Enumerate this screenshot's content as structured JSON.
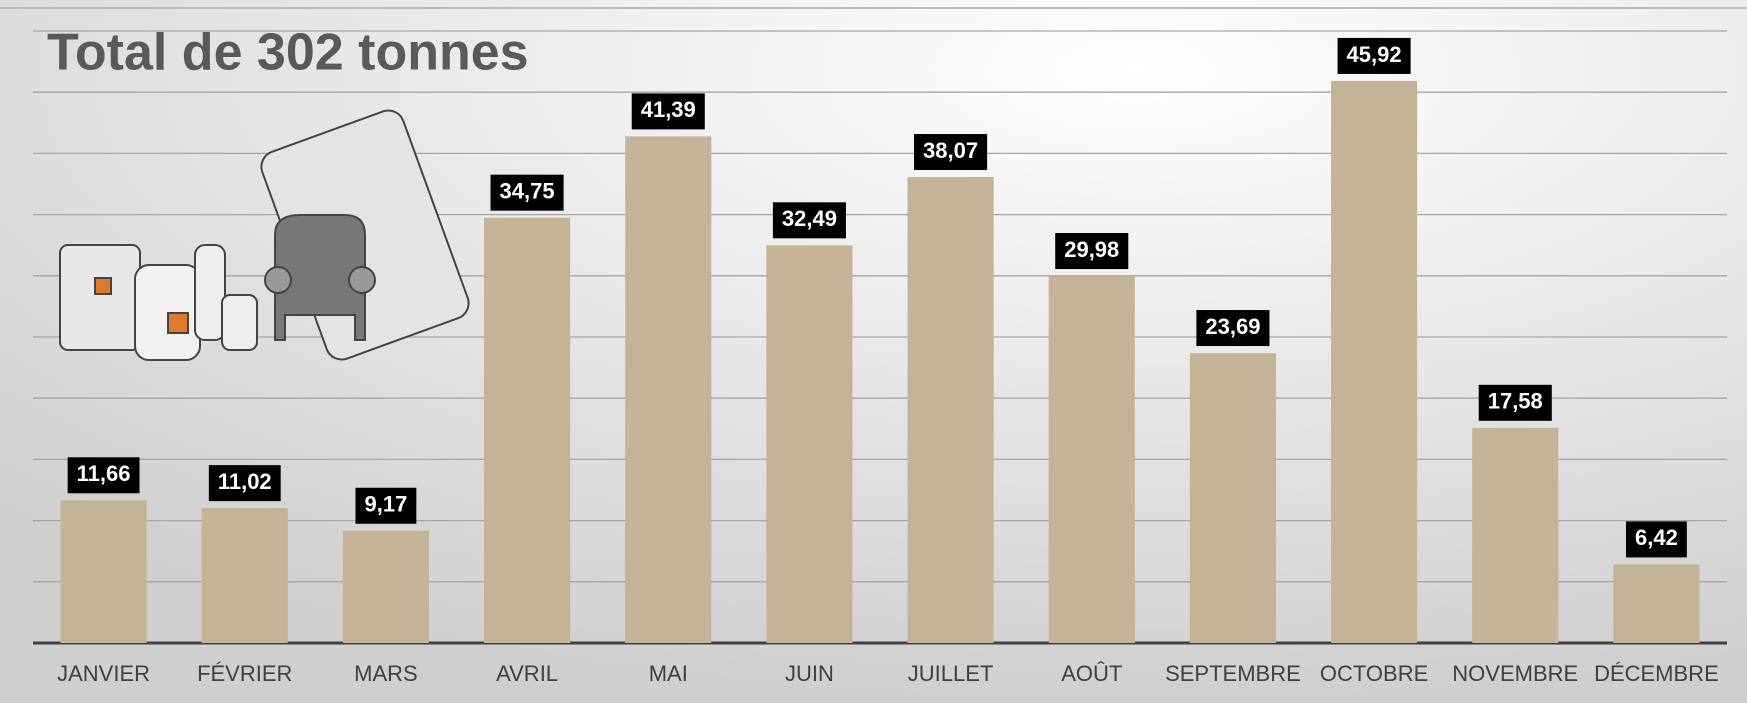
{
  "chart_data": {
    "type": "bar",
    "title": "Total de 302 tonnes",
    "categories": [
      "JANVIER",
      "FÉVRIER",
      "MARS",
      "AVRIL",
      "MAI",
      "JUIN",
      "JUILLET",
      "AOÛT",
      "SEPTEMBRE",
      "OCTOBRE",
      "NOVEMBRE",
      "DÉCEMBRE"
    ],
    "values": [
      11.66,
      11.02,
      9.17,
      34.75,
      41.39,
      32.49,
      38.07,
      29.98,
      23.69,
      45.92,
      17.58,
      6.42
    ],
    "value_labels": [
      "11,66",
      "11,02",
      "9,17",
      "34,75",
      "41,39",
      "32,49",
      "38,07",
      "29,98",
      "23,69",
      "45,92",
      "17,58",
      "6,42"
    ],
    "color": "#c4b396",
    "ylim": [
      0,
      50
    ],
    "yticks": [
      0,
      5,
      10,
      15,
      20,
      25,
      30,
      35,
      40,
      45,
      50
    ],
    "grid": true
  }
}
